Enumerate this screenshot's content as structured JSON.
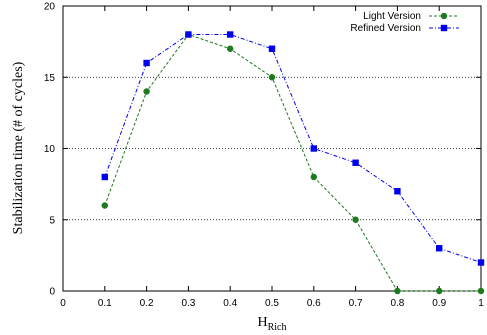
{
  "chart_data": {
    "type": "line",
    "xlabel": "H",
    "xlabel_subscript": "Rich",
    "ylabel": "Stabilization time (# of cycles)",
    "xlim": [
      0,
      1
    ],
    "ylim": [
      0,
      20
    ],
    "x_ticks": [
      "0",
      "0.1",
      "0.2",
      "0.3",
      "0.4",
      "0.5",
      "0.6",
      "0.7",
      "0.8",
      "0.9",
      "1"
    ],
    "y_ticks": [
      "0",
      "5",
      "10",
      "15",
      "20"
    ],
    "grid": "horizontal dotted",
    "legend_position": "top-right",
    "series": [
      {
        "name": "Light Version",
        "color": "#1e7a1e",
        "marker": "circle",
        "line": "dashed",
        "x": [
          0.1,
          0.2,
          0.3,
          0.4,
          0.5,
          0.6,
          0.7,
          0.8,
          0.9,
          1.0
        ],
        "y": [
          6,
          14,
          18,
          17,
          15,
          8,
          5,
          0,
          0,
          0
        ]
      },
      {
        "name": "Refined Version",
        "color": "#0000ee",
        "marker": "square",
        "line": "dash-dot",
        "x": [
          0.1,
          0.2,
          0.3,
          0.4,
          0.5,
          0.6,
          0.7,
          0.8,
          0.9,
          1.0
        ],
        "y": [
          8,
          16,
          18,
          18,
          17,
          10,
          9,
          7,
          3,
          2
        ]
      }
    ]
  }
}
